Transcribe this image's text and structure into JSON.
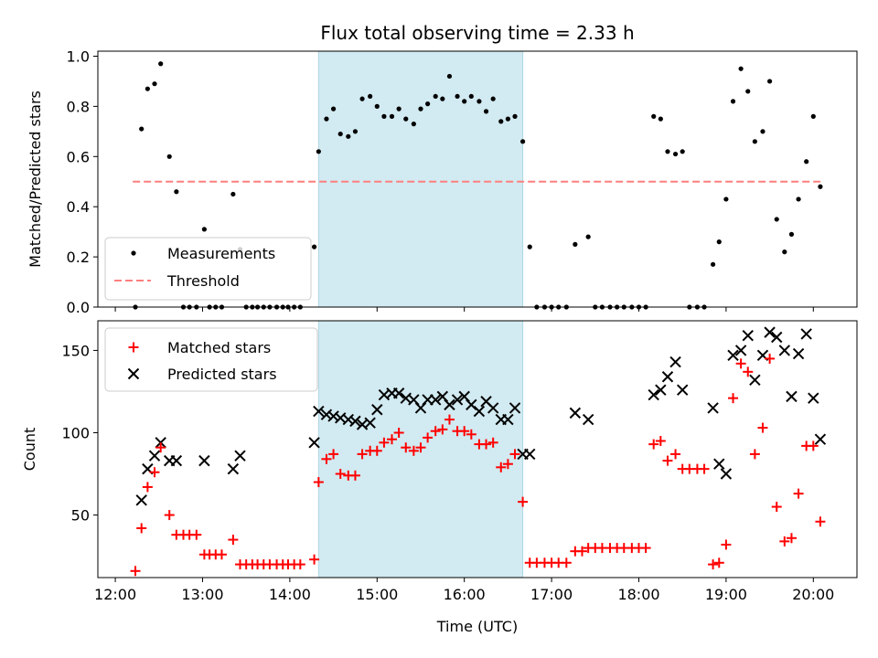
{
  "chart_data": {
    "title": "Flux total observing time = 2.33 h",
    "xlabel": "Time (UTC)",
    "type": "scatter",
    "x_tick_labels": [
      "12:00",
      "13:00",
      "14:00",
      "15:00",
      "16:00",
      "17:00",
      "18:00",
      "19:00",
      "20:00"
    ],
    "x_tick_hours": [
      12,
      13,
      14,
      15,
      16,
      17,
      18,
      19,
      20
    ],
    "xlim_hours": [
      11.8,
      20.5
    ],
    "highlight_span_hours": [
      14.33,
      16.67
    ],
    "colors": {
      "highlight": "#add8e6",
      "measurements": "#000000",
      "threshold": "#ff7f7f",
      "matched": "#ff0000",
      "predicted": "#000000"
    },
    "panels": [
      {
        "name": "ratio",
        "ylabel": "Matched/Predicted stars",
        "ylim": [
          0,
          1.02
        ],
        "y_ticks": [
          0.0,
          0.2,
          0.4,
          0.6,
          0.8,
          1.0
        ],
        "y_tick_labels": [
          "0.0",
          "0.2",
          "0.4",
          "0.6",
          "0.8",
          "1.0"
        ],
        "legend": {
          "position": "lower-left",
          "entries": [
            "Measurements",
            "Threshold"
          ]
        },
        "threshold": {
          "name": "Threshold",
          "y": 0.5,
          "x_range_hours": [
            12.2,
            20.1
          ]
        },
        "measurements": {
          "name": "Measurements",
          "points": [
            [
              12.23,
              0.0
            ],
            [
              12.3,
              0.71
            ],
            [
              12.37,
              0.87
            ],
            [
              12.45,
              0.89
            ],
            [
              12.52,
              0.97
            ],
            [
              12.62,
              0.6
            ],
            [
              12.7,
              0.46
            ],
            [
              12.78,
              0.0
            ],
            [
              12.85,
              0.0
            ],
            [
              12.93,
              0.0
            ],
            [
              13.02,
              0.31
            ],
            [
              13.08,
              0.0
            ],
            [
              13.15,
              0.0
            ],
            [
              13.22,
              0.0
            ],
            [
              13.35,
              0.45
            ],
            [
              13.43,
              0.23
            ],
            [
              13.5,
              0.0
            ],
            [
              13.57,
              0.0
            ],
            [
              13.63,
              0.0
            ],
            [
              13.7,
              0.0
            ],
            [
              13.77,
              0.0
            ],
            [
              13.85,
              0.0
            ],
            [
              13.92,
              0.0
            ],
            [
              13.98,
              0.0
            ],
            [
              14.05,
              0.0
            ],
            [
              14.12,
              0.0
            ],
            [
              14.28,
              0.24
            ],
            [
              14.33,
              0.62
            ],
            [
              14.42,
              0.75
            ],
            [
              14.5,
              0.79
            ],
            [
              14.58,
              0.69
            ],
            [
              14.67,
              0.68
            ],
            [
              14.75,
              0.7
            ],
            [
              14.83,
              0.83
            ],
            [
              14.92,
              0.84
            ],
            [
              15.0,
              0.8
            ],
            [
              15.08,
              0.76
            ],
            [
              15.17,
              0.76
            ],
            [
              15.25,
              0.79
            ],
            [
              15.33,
              0.75
            ],
            [
              15.42,
              0.73
            ],
            [
              15.5,
              0.79
            ],
            [
              15.58,
              0.81
            ],
            [
              15.67,
              0.84
            ],
            [
              15.75,
              0.83
            ],
            [
              15.83,
              0.92
            ],
            [
              15.92,
              0.84
            ],
            [
              16.0,
              0.82
            ],
            [
              16.08,
              0.84
            ],
            [
              16.17,
              0.82
            ],
            [
              16.25,
              0.78
            ],
            [
              16.33,
              0.83
            ],
            [
              16.42,
              0.74
            ],
            [
              16.5,
              0.75
            ],
            [
              16.58,
              0.76
            ],
            [
              16.67,
              0.66
            ],
            [
              16.75,
              0.24
            ],
            [
              16.83,
              0.0
            ],
            [
              16.92,
              0.0
            ],
            [
              17.0,
              0.0
            ],
            [
              17.08,
              0.0
            ],
            [
              17.17,
              0.0
            ],
            [
              17.27,
              0.25
            ],
            [
              17.42,
              0.28
            ],
            [
              17.5,
              0.0
            ],
            [
              17.58,
              0.0
            ],
            [
              17.67,
              0.0
            ],
            [
              17.75,
              0.0
            ],
            [
              17.83,
              0.0
            ],
            [
              17.92,
              0.0
            ],
            [
              18.0,
              0.0
            ],
            [
              18.08,
              0.0
            ],
            [
              18.17,
              0.76
            ],
            [
              18.25,
              0.75
            ],
            [
              18.33,
              0.62
            ],
            [
              18.42,
              0.61
            ],
            [
              18.5,
              0.62
            ],
            [
              18.58,
              0.0
            ],
            [
              18.67,
              0.0
            ],
            [
              18.75,
              0.0
            ],
            [
              18.85,
              0.17
            ],
            [
              18.92,
              0.26
            ],
            [
              19.0,
              0.43
            ],
            [
              19.08,
              0.82
            ],
            [
              19.17,
              0.95
            ],
            [
              19.25,
              0.86
            ],
            [
              19.33,
              0.66
            ],
            [
              19.42,
              0.7
            ],
            [
              19.5,
              0.9
            ],
            [
              19.58,
              0.35
            ],
            [
              19.67,
              0.22
            ],
            [
              19.75,
              0.29
            ],
            [
              19.83,
              0.43
            ],
            [
              19.92,
              0.58
            ],
            [
              20.0,
              0.76
            ],
            [
              20.08,
              0.48
            ]
          ]
        }
      },
      {
        "name": "counts",
        "ylabel": "Count",
        "ylim": [
          12,
          168
        ],
        "y_ticks": [
          50,
          100,
          150
        ],
        "y_tick_labels": [
          "50",
          "100",
          "150"
        ],
        "legend": {
          "position": "upper-left",
          "entries": [
            "Matched stars",
            "Predicted stars"
          ]
        },
        "matched": {
          "name": "Matched stars",
          "points": [
            [
              12.23,
              16
            ],
            [
              12.3,
              42
            ],
            [
              12.37,
              67
            ],
            [
              12.45,
              76
            ],
            [
              12.52,
              91
            ],
            [
              12.62,
              50
            ],
            [
              12.7,
              38
            ],
            [
              12.78,
              38
            ],
            [
              12.85,
              38
            ],
            [
              12.93,
              38
            ],
            [
              13.02,
              26
            ],
            [
              13.08,
              26
            ],
            [
              13.15,
              26
            ],
            [
              13.22,
              26
            ],
            [
              13.35,
              35
            ],
            [
              13.43,
              20
            ],
            [
              13.5,
              20
            ],
            [
              13.57,
              20
            ],
            [
              13.63,
              20
            ],
            [
              13.7,
              20
            ],
            [
              13.77,
              20
            ],
            [
              13.85,
              20
            ],
            [
              13.92,
              20
            ],
            [
              13.98,
              20
            ],
            [
              14.05,
              20
            ],
            [
              14.12,
              20
            ],
            [
              14.28,
              23
            ],
            [
              14.33,
              70
            ],
            [
              14.42,
              84
            ],
            [
              14.5,
              87
            ],
            [
              14.58,
              75
            ],
            [
              14.67,
              74
            ],
            [
              14.75,
              74
            ],
            [
              14.83,
              87
            ],
            [
              14.92,
              89
            ],
            [
              15.0,
              89
            ],
            [
              15.08,
              94
            ],
            [
              15.17,
              96
            ],
            [
              15.25,
              100
            ],
            [
              15.33,
              91
            ],
            [
              15.42,
              89
            ],
            [
              15.5,
              91
            ],
            [
              15.58,
              97
            ],
            [
              15.67,
              101
            ],
            [
              15.75,
              102
            ],
            [
              15.83,
              108
            ],
            [
              15.92,
              101
            ],
            [
              16.0,
              101
            ],
            [
              16.08,
              99
            ],
            [
              16.17,
              93
            ],
            [
              16.25,
              93
            ],
            [
              16.33,
              94
            ],
            [
              16.42,
              79
            ],
            [
              16.5,
              81
            ],
            [
              16.58,
              87
            ],
            [
              16.67,
              58
            ],
            [
              16.75,
              21
            ],
            [
              16.83,
              21
            ],
            [
              16.92,
              21
            ],
            [
              17.0,
              21
            ],
            [
              17.08,
              21
            ],
            [
              17.17,
              21
            ],
            [
              17.27,
              28
            ],
            [
              17.35,
              28
            ],
            [
              17.42,
              30
            ],
            [
              17.5,
              30
            ],
            [
              17.58,
              30
            ],
            [
              17.67,
              30
            ],
            [
              17.75,
              30
            ],
            [
              17.83,
              30
            ],
            [
              17.92,
              30
            ],
            [
              18.0,
              30
            ],
            [
              18.08,
              30
            ],
            [
              18.17,
              93
            ],
            [
              18.25,
              95
            ],
            [
              18.33,
              83
            ],
            [
              18.42,
              87
            ],
            [
              18.5,
              78
            ],
            [
              18.58,
              78
            ],
            [
              18.67,
              78
            ],
            [
              18.75,
              78
            ],
            [
              18.85,
              20
            ],
            [
              18.92,
              21
            ],
            [
              19.0,
              32
            ],
            [
              19.08,
              121
            ],
            [
              19.17,
              142
            ],
            [
              19.25,
              137
            ],
            [
              19.33,
              87
            ],
            [
              19.42,
              103
            ],
            [
              19.5,
              145
            ],
            [
              19.58,
              55
            ],
            [
              19.67,
              34
            ],
            [
              19.75,
              36
            ],
            [
              19.83,
              63
            ],
            [
              19.92,
              92
            ],
            [
              20.0,
              92
            ],
            [
              20.08,
              46
            ]
          ]
        },
        "predicted": {
          "name": "Predicted stars",
          "points": [
            [
              12.3,
              59
            ],
            [
              12.37,
              78
            ],
            [
              12.45,
              86
            ],
            [
              12.52,
              94
            ],
            [
              12.62,
              83
            ],
            [
              12.7,
              83
            ],
            [
              13.02,
              83
            ],
            [
              13.35,
              78
            ],
            [
              13.43,
              86
            ],
            [
              14.28,
              94
            ],
            [
              14.33,
              113
            ],
            [
              14.42,
              111
            ],
            [
              14.5,
              110
            ],
            [
              14.58,
              109
            ],
            [
              14.67,
              108
            ],
            [
              14.75,
              107
            ],
            [
              14.83,
              105
            ],
            [
              14.92,
              106
            ],
            [
              15.0,
              114
            ],
            [
              15.08,
              123
            ],
            [
              15.17,
              124
            ],
            [
              15.25,
              124
            ],
            [
              15.33,
              121
            ],
            [
              15.42,
              120
            ],
            [
              15.5,
              115
            ],
            [
              15.58,
              120
            ],
            [
              15.67,
              120
            ],
            [
              15.75,
              122
            ],
            [
              15.83,
              117
            ],
            [
              15.92,
              120
            ],
            [
              16.0,
              122
            ],
            [
              16.08,
              117
            ],
            [
              16.17,
              113
            ],
            [
              16.25,
              119
            ],
            [
              16.33,
              115
            ],
            [
              16.42,
              108
            ],
            [
              16.5,
              108
            ],
            [
              16.58,
              115
            ],
            [
              16.67,
              87
            ],
            [
              16.75,
              87
            ],
            [
              17.27,
              112
            ],
            [
              17.42,
              108
            ],
            [
              18.17,
              123
            ],
            [
              18.25,
              126
            ],
            [
              18.33,
              134
            ],
            [
              18.42,
              143
            ],
            [
              18.5,
              126
            ],
            [
              18.85,
              115
            ],
            [
              18.92,
              81
            ],
            [
              19.0,
              75
            ],
            [
              19.08,
              147
            ],
            [
              19.17,
              150
            ],
            [
              19.25,
              159
            ],
            [
              19.33,
              132
            ],
            [
              19.42,
              147
            ],
            [
              19.5,
              161
            ],
            [
              19.58,
              158
            ],
            [
              19.67,
              150
            ],
            [
              19.75,
              122
            ],
            [
              19.83,
              148
            ],
            [
              19.92,
              160
            ],
            [
              20.0,
              121
            ],
            [
              20.08,
              96
            ]
          ]
        }
      }
    ]
  }
}
